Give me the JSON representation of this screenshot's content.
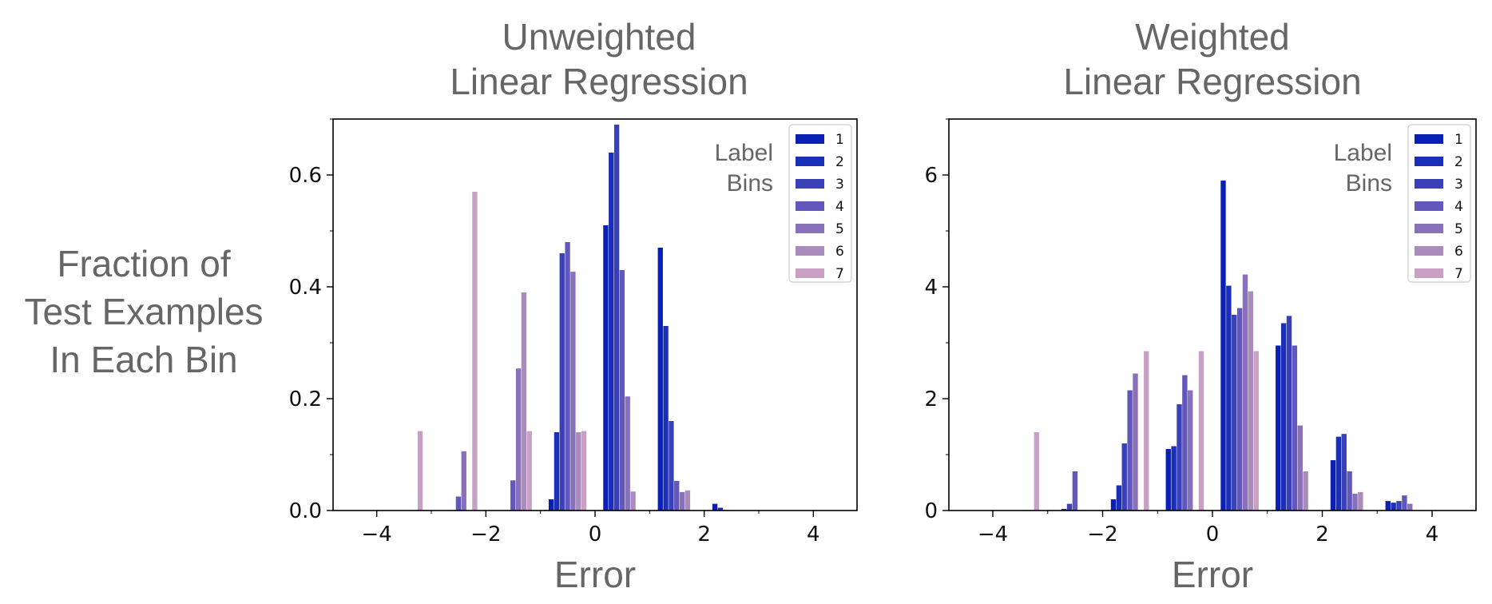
{
  "ylabel": [
    "Fraction of",
    "Test Examples",
    "In Each Bin"
  ],
  "chart_data": [
    {
      "type": "bar",
      "title": [
        "Unweighted",
        "Linear Regression"
      ],
      "xlabel": "Error",
      "ylabel": "Fraction of Test Examples In Each Bin",
      "xlim": [
        -4.8,
        4.8
      ],
      "ylim": [
        0,
        0.7
      ],
      "xticks": [
        -4,
        -2,
        0,
        2,
        4
      ],
      "xtick_labels": [
        "−4",
        "−2",
        "0",
        "2",
        "4"
      ],
      "yticks": [
        0,
        0.2,
        0.4,
        0.6
      ],
      "ytick_labels": [
        "0.0",
        "0.2",
        "0.4",
        "0.6"
      ],
      "bin_centers": [
        -3.5,
        -2.5,
        -1.5,
        -0.5,
        0.5,
        1.5,
        2.5,
        3.5
      ],
      "legend": {
        "title": [
          "Label",
          "Bins"
        ],
        "position": "top-right"
      },
      "series": [
        {
          "name": "1",
          "color": "#0a1fb4",
          "values": [
            0,
            0,
            0,
            0.02,
            0.51,
            0.47,
            0.012,
            0
          ]
        },
        {
          "name": "2",
          "color": "#1b2eb8",
          "values": [
            0,
            0,
            0,
            0.14,
            0.64,
            0.33,
            0.005,
            0
          ]
        },
        {
          "name": "3",
          "color": "#3a40b8",
          "values": [
            0,
            0,
            0,
            0.46,
            0.69,
            0.16,
            0.001,
            0
          ]
        },
        {
          "name": "4",
          "color": "#6257bb",
          "values": [
            0,
            0.025,
            0.054,
            0.48,
            0.43,
            0.053,
            0,
            0
          ]
        },
        {
          "name": "5",
          "color": "#8870bb",
          "values": [
            0,
            0.106,
            0.254,
            0.427,
            0.204,
            0.033,
            0,
            0
          ]
        },
        {
          "name": "6",
          "color": "#a98cbb",
          "values": [
            0,
            0,
            0.39,
            0.14,
            0.034,
            0.036,
            0,
            0
          ]
        },
        {
          "name": "7",
          "color": "#c8a0c4",
          "values": [
            0.142,
            0.57,
            0.142,
            0.142,
            0,
            0,
            0,
            0
          ]
        }
      ]
    },
    {
      "type": "bar",
      "title": [
        "Weighted",
        "Linear Regression"
      ],
      "xlabel": "Error",
      "xlim": [
        -4.8,
        4.8
      ],
      "ylim": [
        0,
        7
      ],
      "xticks": [
        -4,
        -2,
        0,
        2,
        4
      ],
      "xtick_labels": [
        "−4",
        "−2",
        "0",
        "2",
        "4"
      ],
      "yticks": [
        0,
        2,
        4,
        6
      ],
      "ytick_labels": [
        "0",
        "2",
        "4",
        "6"
      ],
      "bin_centers": [
        -3.5,
        -2.5,
        -1.5,
        -0.5,
        0.5,
        1.5,
        2.5,
        3.5
      ],
      "legend": {
        "title": [
          "Label",
          "Bins"
        ],
        "position": "top-right"
      },
      "series": [
        {
          "name": "1",
          "color": "#0a1fb4",
          "values": [
            0,
            0,
            0.2,
            1.1,
            5.9,
            2.95,
            0.9,
            0.17
          ]
        },
        {
          "name": "2",
          "color": "#1b2eb8",
          "values": [
            0,
            0.03,
            0.45,
            1.15,
            4.02,
            3.35,
            1.32,
            0.14
          ]
        },
        {
          "name": "3",
          "color": "#3a40b8",
          "values": [
            0,
            0.12,
            1.2,
            1.9,
            3.5,
            3.48,
            1.37,
            0.17
          ]
        },
        {
          "name": "4",
          "color": "#6257bb",
          "values": [
            0,
            0.7,
            2.15,
            2.42,
            3.62,
            2.95,
            0.7,
            0.27
          ]
        },
        {
          "name": "5",
          "color": "#8870bb",
          "values": [
            0,
            0,
            2.45,
            2.15,
            4.22,
            1.52,
            0.3,
            0.12
          ]
        },
        {
          "name": "6",
          "color": "#a98cbb",
          "values": [
            0,
            0,
            0,
            0,
            3.92,
            0.7,
            0.33,
            0
          ]
        },
        {
          "name": "7",
          "color": "#c8a0c4",
          "values": [
            1.4,
            0,
            2.85,
            2.85,
            2.85,
            0,
            0,
            0
          ]
        }
      ]
    }
  ]
}
